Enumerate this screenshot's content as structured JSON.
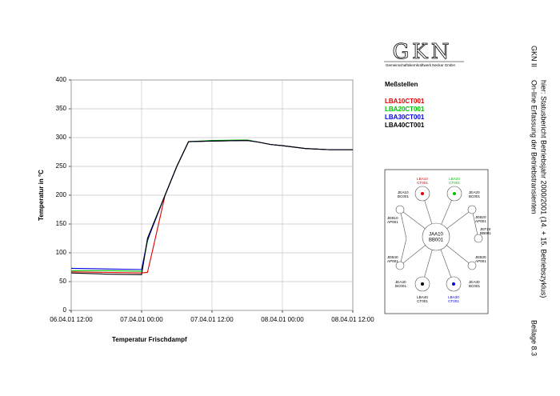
{
  "chart_data": {
    "type": "line",
    "x": [
      "06.04.01 12:00",
      "06.04.01 18:00",
      "07.04.01 00:00",
      "07.04.01 01:00",
      "07.04.01 02:00",
      "07.04.01 04:00",
      "07.04.01 06:00",
      "07.04.01 08:00",
      "07.04.01 12:00",
      "07.04.01 18:00",
      "07.04.01 20:00",
      "07.04.01 22:00",
      "08.04.01 00:00",
      "08.04.01 04:00",
      "08.04.01 08:00",
      "08.04.01 12:00"
    ],
    "series": [
      {
        "name": "LBA10CT001",
        "color": "#e00000",
        "values": [
          67,
          66,
          65,
          66,
          110,
          200,
          250,
          293,
          294,
          295,
          292,
          288,
          286,
          281,
          279,
          279
        ]
      },
      {
        "name": "LBA20CT001",
        "color": "#00c000",
        "values": [
          69,
          69,
          68,
          120,
          150,
          200,
          250,
          293,
          295,
          296,
          292,
          288,
          286,
          281,
          279,
          279
        ]
      },
      {
        "name": "LBA30CT001",
        "color": "#0000e0",
        "values": [
          73,
          72,
          71,
          122,
          148,
          200,
          250,
          293,
          294,
          295,
          292,
          288,
          286,
          281,
          279,
          279
        ]
      },
      {
        "name": "LBA40CT001",
        "color": "#000000",
        "values": [
          65,
          63,
          62,
          125,
          150,
          200,
          250,
          293,
          294,
          295,
          292,
          288,
          286,
          281,
          279,
          279
        ]
      }
    ],
    "xlim": [
      "06.04.01 12:00",
      "08.04.01 12:00"
    ],
    "xticks": [
      "06.04.01 12:00",
      "07.04.01 00:00",
      "07.04.01 12:00",
      "08.04.01 00:00",
      "08.04.01 12:00"
    ],
    "ylim": [
      0,
      400
    ],
    "yticks": [
      0,
      50,
      100,
      150,
      200,
      250,
      300,
      350,
      400
    ],
    "xlabel": "Temperatur Frischdampf",
    "ylabel": "Temperatur in °C",
    "legend_title": "Meßstellen",
    "legend": "right",
    "grid": true
  },
  "logo": {
    "name": "GKN",
    "subtitle": "Gemeinschaftskernkraftwerk Neckar GmbH"
  },
  "header": {
    "plant": "GKN II",
    "title": "On-line Erfassung der Betriebstransienten",
    "subtitle": "hier: Statusbericht Betriebsjahr 2000/2001 (14. + 15. Betriebszyklus)",
    "appendix": "Beilage 8.3"
  },
  "diagram": {
    "center": [
      "JAA10",
      "BB001"
    ],
    "nodes": [
      [
        "LBA10",
        "CT001"
      ],
      [
        "LBA20",
        "CT001"
      ],
      [
        "JEA10",
        "BC001"
      ],
      [
        "JEA20",
        "BC001"
      ],
      [
        "JEB10",
        "AP001"
      ],
      [
        "JEB20",
        "AP001"
      ],
      [
        "JEF10",
        "BB001"
      ],
      [
        "JEB40",
        "AP001"
      ],
      [
        "JEB30",
        "AP001"
      ],
      [
        "JEA40",
        "BC001"
      ],
      [
        "JEA30",
        "BC001"
      ],
      [
        "LBA40",
        "CT001"
      ],
      [
        "LBA30",
        "CT001"
      ]
    ]
  }
}
